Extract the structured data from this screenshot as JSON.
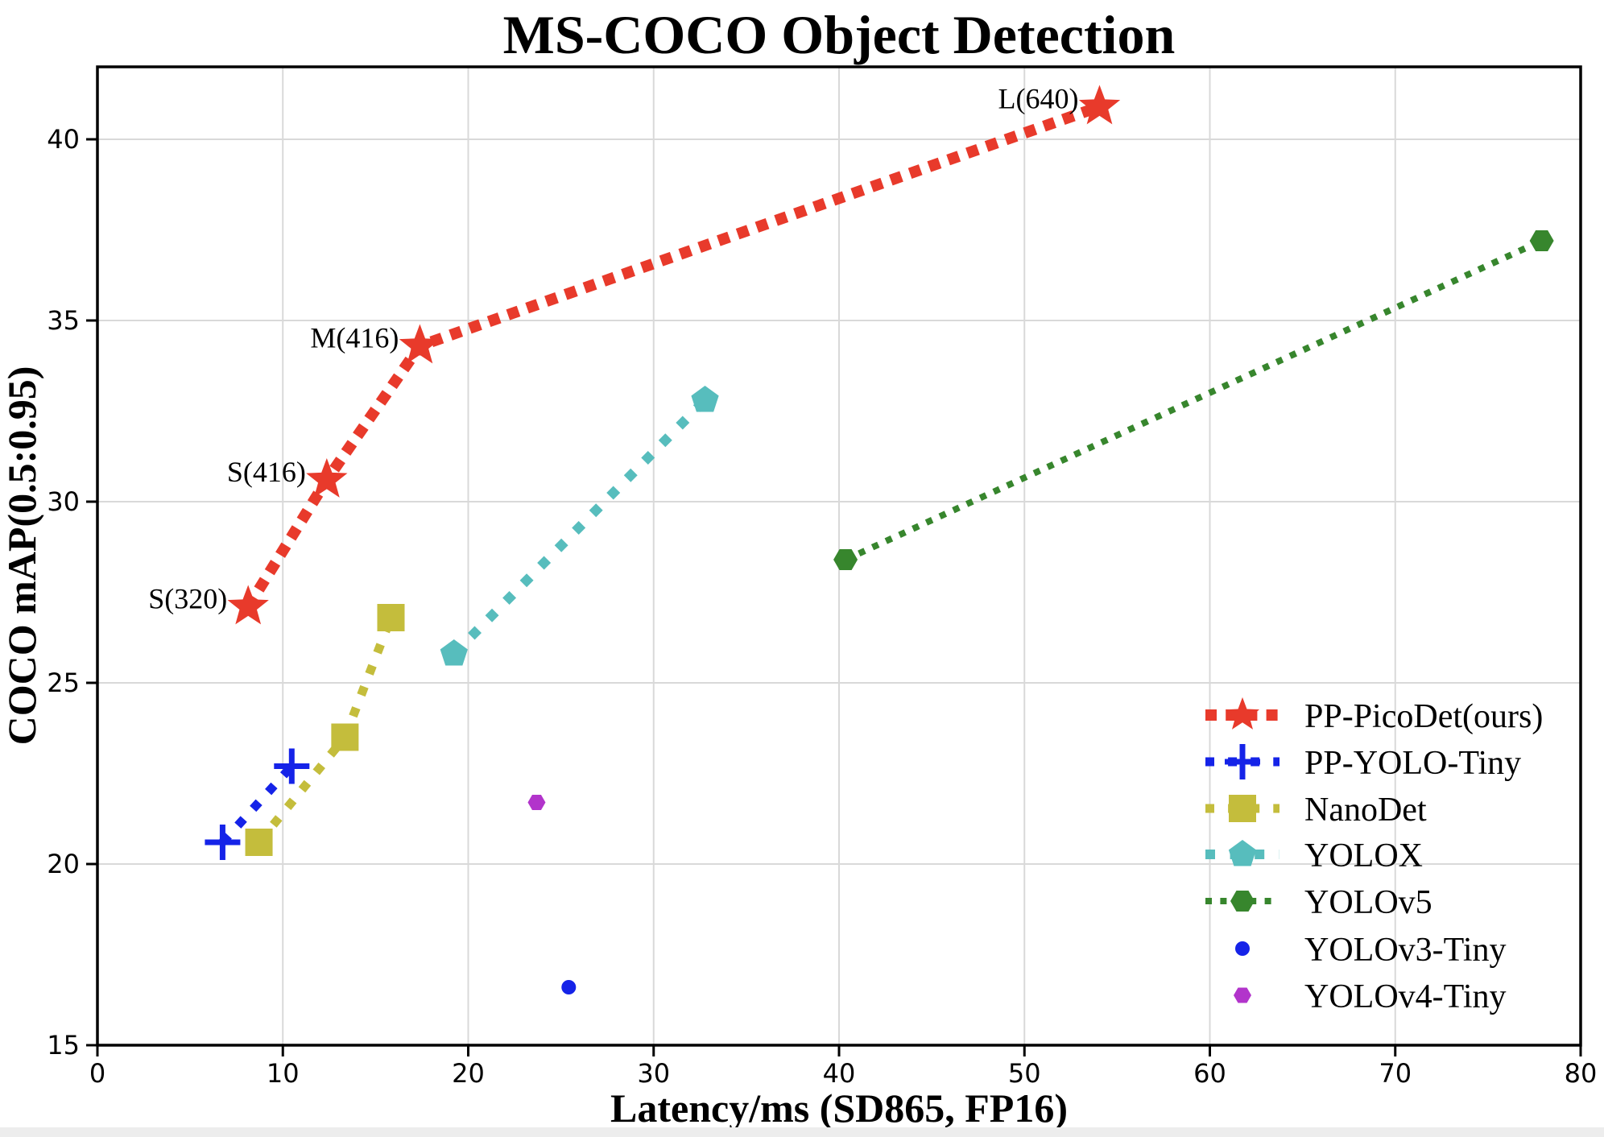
{
  "figure": {
    "background": "#ffffff",
    "bottom_strip_color": "#ededed"
  },
  "chart_data": {
    "type": "scatter",
    "title": "MS-COCO Object Detection",
    "xlabel": "Latency/ms (SD865, FP16)",
    "ylabel": "COCO mAP(0.5:0.95)",
    "xlim": [
      0,
      80
    ],
    "ylim": [
      15,
      42
    ],
    "xticks": [
      0,
      10,
      20,
      30,
      40,
      50,
      60,
      70,
      80
    ],
    "yticks": [
      15,
      20,
      25,
      30,
      35,
      40
    ],
    "grid": true,
    "grid_color": "#d9d9d9",
    "spine_color": "#000000",
    "legend_position": "lower right",
    "series": [
      {
        "name": "PP-PicoDet(ours)",
        "color": "#e83a2b",
        "marker": "star",
        "marker_size": 27,
        "line_style": "dashed",
        "line_width": 14,
        "points": [
          [
            8.13,
            27.1
          ],
          [
            12.37,
            30.6
          ],
          [
            17.39,
            34.3
          ],
          [
            54.05,
            40.9
          ]
        ],
        "point_labels": [
          "S(320)",
          "S(416)",
          "M(416)",
          "L(640)"
        ]
      },
      {
        "name": "PP-YOLO-Tiny",
        "color": "#1523e8",
        "marker": "plus",
        "marker_size": 22,
        "line_style": "dotted",
        "line_width": 11,
        "points": [
          [
            6.75,
            20.6
          ],
          [
            10.48,
            22.7
          ]
        ],
        "point_labels": []
      },
      {
        "name": "NanoDet",
        "color": "#c4bd3c",
        "marker": "square",
        "marker_size": 17,
        "line_style": "dotted",
        "line_width": 11,
        "points": [
          [
            8.71,
            20.6
          ],
          [
            13.35,
            23.5
          ],
          [
            15.83,
            26.8
          ]
        ],
        "point_labels": []
      },
      {
        "name": "YOLOX",
        "color": "#57bdbd",
        "marker": "pentagon",
        "marker_size": 18,
        "line_style": "dotted",
        "line_width": 12,
        "points": [
          [
            19.23,
            25.8
          ],
          [
            32.77,
            32.8
          ]
        ],
        "point_labels": []
      },
      {
        "name": "YOLOv5",
        "color": "#37862d",
        "marker": "hexagon",
        "marker_size": 15,
        "line_style": "dotted-fine",
        "line_width": 8,
        "points": [
          [
            40.35,
            28.4
          ],
          [
            77.9,
            37.2
          ]
        ],
        "point_labels": []
      },
      {
        "name": "YOLOv3-Tiny",
        "color": "#1523e8",
        "marker": "circle",
        "marker_size": 9,
        "line_style": "none",
        "line_width": 0,
        "points": [
          [
            25.42,
            16.6
          ]
        ],
        "point_labels": []
      },
      {
        "name": "YOLOv4-Tiny",
        "color": "#b234cb",
        "marker": "hexagon",
        "marker_size": 11,
        "line_style": "none",
        "line_width": 0,
        "points": [
          [
            23.69,
            21.7
          ]
        ],
        "point_labels": []
      }
    ]
  }
}
